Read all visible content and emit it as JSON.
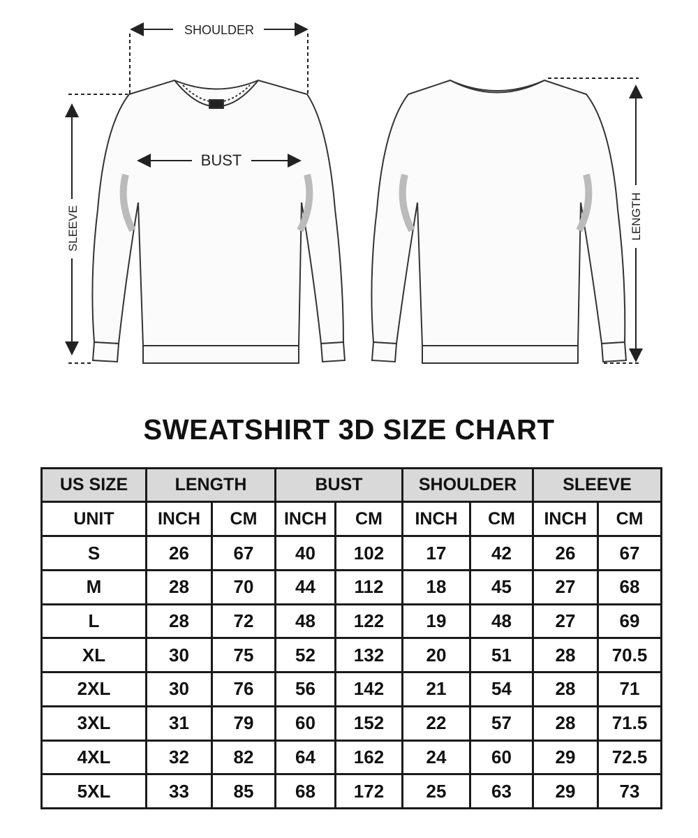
{
  "illustration": {
    "labels": {
      "shoulder": "SHOULDER",
      "bust": "BUST",
      "sleeve": "SLEEVE",
      "length": "LENGTH"
    }
  },
  "title": "SWEATSHIRT 3D SIZE CHART",
  "table": {
    "group_headers": [
      "US SIZE",
      "LENGTH",
      "BUST",
      "SHOULDER",
      "SLEEVE"
    ],
    "unit_row": [
      "UNIT",
      "INCH",
      "CM",
      "INCH",
      "CM",
      "INCH",
      "CM",
      "INCH",
      "CM"
    ],
    "rows": [
      [
        "S",
        "26",
        "67",
        "40",
        "102",
        "17",
        "42",
        "26",
        "67"
      ],
      [
        "M",
        "28",
        "70",
        "44",
        "112",
        "18",
        "45",
        "27",
        "68"
      ],
      [
        "L",
        "28",
        "72",
        "48",
        "122",
        "19",
        "48",
        "27",
        "69"
      ],
      [
        "XL",
        "30",
        "75",
        "52",
        "132",
        "20",
        "51",
        "28",
        "70.5"
      ],
      [
        "2XL",
        "30",
        "76",
        "56",
        "142",
        "21",
        "54",
        "28",
        "71"
      ],
      [
        "3XL",
        "31",
        "79",
        "60",
        "152",
        "22",
        "57",
        "28",
        "71.5"
      ],
      [
        "4XL",
        "32",
        "82",
        "64",
        "162",
        "24",
        "60",
        "29",
        "72.5"
      ],
      [
        "5XL",
        "33",
        "85",
        "68",
        "172",
        "25",
        "63",
        "29",
        "73"
      ]
    ]
  },
  "colors": {
    "header_bg": "#d9d9d9",
    "border": "#1a1a1a",
    "text": "#111111"
  }
}
